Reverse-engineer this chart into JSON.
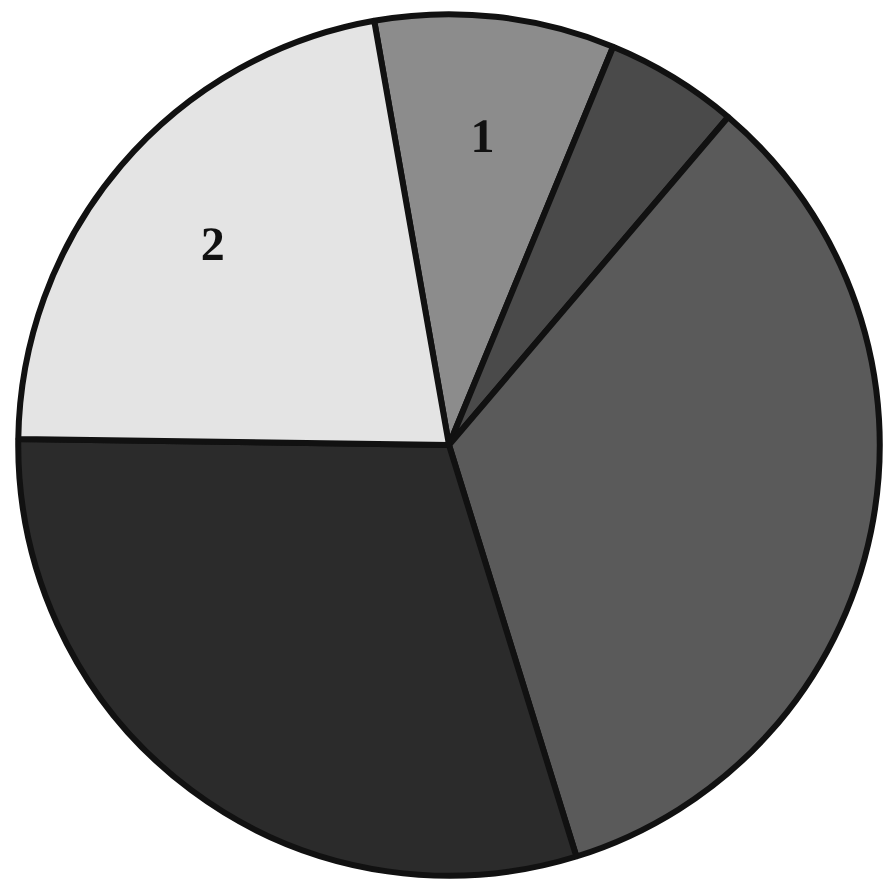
{
  "chart_data": {
    "type": "pie",
    "categories": [
      "1",
      null,
      null,
      null,
      "2"
    ],
    "values": [
      9,
      5,
      34,
      30,
      22
    ],
    "colors": [
      "#8c8c8c",
      "#4a4a4a",
      "#5a5a5a",
      "#2b2b2b",
      "#e4e4e4"
    ]
  }
}
